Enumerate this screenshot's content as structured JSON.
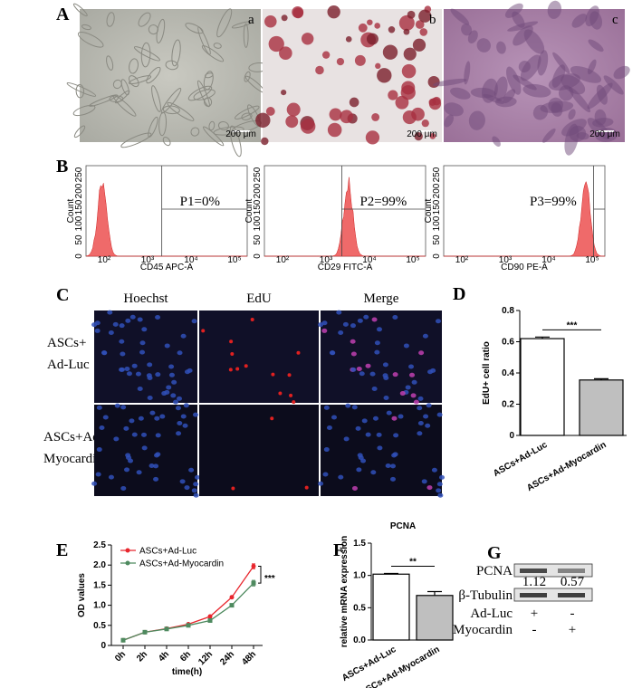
{
  "panel_A": {
    "label": "A",
    "images": [
      {
        "label": "a",
        "scale_bar": "200 μm"
      },
      {
        "label": "b",
        "scale_bar": "200 μm"
      },
      {
        "label": "c",
        "scale_bar": "200 μm"
      }
    ]
  },
  "panel_B": {
    "label": "B",
    "histograms": [
      {
        "gate": "P1=0%",
        "x_label": "CD45 APC-A",
        "y_label": "Count",
        "xticks": [
          "10²",
          "10³",
          "10⁴",
          "10⁵"
        ],
        "yticks": [
          "0",
          "50",
          "100",
          "150",
          "200",
          "250"
        ]
      },
      {
        "gate": "P2=99%",
        "x_label": "CD29 FITC-A",
        "y_label": "Count",
        "xticks": [
          "10²",
          "10³",
          "10⁴",
          "10⁵"
        ],
        "yticks": [
          "0",
          "50",
          "100",
          "150",
          "200",
          "250"
        ]
      },
      {
        "gate": "P3=99%",
        "x_label": "CD90 PE-A",
        "y_label": "Count",
        "xticks": [
          "10²",
          "10³",
          "10⁴",
          "10⁵"
        ],
        "yticks": [
          "0",
          "50",
          "100",
          "150",
          "200",
          "250"
        ]
      }
    ]
  },
  "panel_C": {
    "label": "C",
    "columns": [
      "Hoechst",
      "EdU",
      "Merge"
    ],
    "rows": [
      [
        "ASCs+",
        "Ad-Luc"
      ],
      [
        "ASCs+Ad-",
        "Myocardin"
      ]
    ]
  },
  "panel_G": {
    "label": "G",
    "rows": [
      "PCNA",
      "β-Tubulin"
    ],
    "densities": [
      "1.12",
      "0.57"
    ],
    "conditions": [
      {
        "name": "Ad-Luc",
        "marks": [
          "+",
          "-"
        ]
      },
      {
        "name": "Ad-Myocardin",
        "marks": [
          "-",
          "+"
        ]
      }
    ]
  },
  "chart_data": [
    {
      "type": "bar",
      "label": "D",
      "y_label": "EdU+ cell ratio",
      "categories": [
        "ASCs+Ad-Luc",
        "ASCs+Ad-Myocardin"
      ],
      "values": [
        0.62,
        0.355
      ],
      "errors": [
        0.01,
        0.008
      ],
      "colors": [
        "#ffffff",
        "#bfbfbf"
      ],
      "annotation": "***",
      "ylim": [
        0,
        0.8
      ],
      "yticks": [
        0,
        0.2,
        0.4,
        0.6,
        0.8
      ]
    },
    {
      "type": "line",
      "label": "E",
      "x_label": "time(h)",
      "y_label": "OD values",
      "categories": [
        "0h",
        "2h",
        "4h",
        "6h",
        "12h",
        "24h",
        "48h"
      ],
      "series": [
        {
          "name": "ASCs+Ad-Luc",
          "color": "#e8262d",
          "values": [
            0.13,
            0.33,
            0.42,
            0.53,
            0.72,
            1.2,
            1.97
          ],
          "errors": [
            0.02,
            0.02,
            0.02,
            0.02,
            0.03,
            0.03,
            0.06
          ]
        },
        {
          "name": "ASCs+Ad-Myocardin",
          "color": "#4e8a5f",
          "values": [
            0.13,
            0.33,
            0.41,
            0.5,
            0.62,
            1.0,
            1.55
          ],
          "errors": [
            0.02,
            0.02,
            0.02,
            0.02,
            0.03,
            0.03,
            0.07
          ]
        }
      ],
      "annotation": "***",
      "ylim": [
        0,
        2.5
      ],
      "yticks": [
        0,
        {
          "value": 0.5,
          "label": "0.5"
        },
        {
          "value": 1,
          "label": "1.0"
        },
        {
          "value": 1.5,
          "label": "1.5"
        },
        {
          "value": 2,
          "label": "2.0"
        },
        {
          "value": 2.5,
          "label": "2.5"
        }
      ]
    },
    {
      "type": "bar",
      "label": "F",
      "title": "PCNA",
      "y_label": "relative mRNA expression",
      "categories": [
        "ASCs+Ad-Luc",
        "ASCs+Ad-Myocardin"
      ],
      "values": [
        1.02,
        0.69
      ],
      "errors": [
        0.01,
        0.06
      ],
      "colors": [
        "#ffffff",
        "#bfbfbf"
      ],
      "annotation": "**",
      "ylim": [
        0,
        1.5
      ],
      "yticks": [
        {
          "value": 0,
          "label": "0.0"
        },
        {
          "value": 0.5,
          "label": "0.5"
        },
        {
          "value": 1,
          "label": "1.0"
        },
        {
          "value": 1.5,
          "label": "1.5"
        }
      ]
    }
  ]
}
